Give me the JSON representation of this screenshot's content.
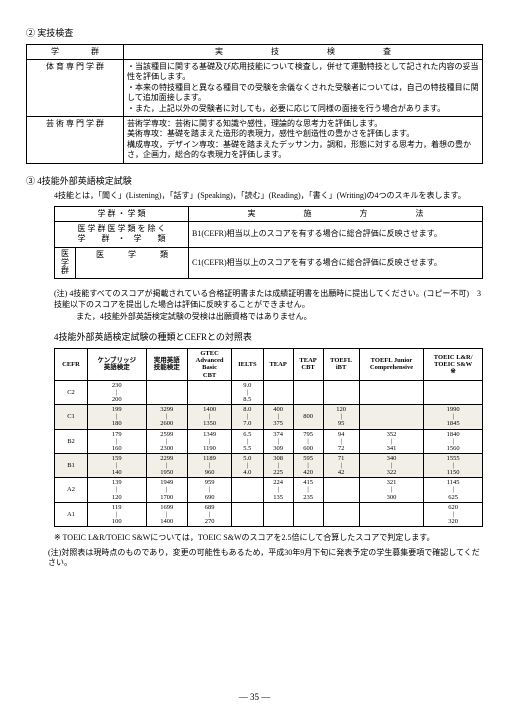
{
  "section2": {
    "title": "② 実技検査",
    "table": {
      "headers": [
        "学　　　　群",
        "実　　　　　　技　　　　　　検　　　　　　査"
      ],
      "rows": [
        {
          "label": "体 育 専 門 学 群",
          "content": "・当該種目に関する基礎及び応用技能について検査し，併せて運動特技として記された内容の妥当性を評価します。\n・本来の特技種目と異なる種目での受験を余儀なくされた受験者については，自己の特技種目に関して追加面接します。\n・また，上記以外の受験者に対しても，必要に応じて同様の面接を行う場合があります。"
        },
        {
          "label": "芸 術 専 門 学 群",
          "content": "芸術学専攻：芸術に関する知識や感性，理論的な思考力を評価します。\n美術専攻：基礎を踏まえた造形的表現力，感性や創造性の豊かさを評価します。\n構成専攻，デザイン専攻：基礎を踏まえたデッサン力，調和，形態に対する思考力，着想の豊かさ，企画力，総合的な表現力を評価します。"
        }
      ]
    }
  },
  "section3": {
    "title": "③ 4技能外部英語検定試験",
    "sub": "4技能とは，「聞く」(Listening)，「話す」(Speaking)，「読む」(Reading)，「書く」(Writing)の4つのスキルを表します。",
    "table": {
      "headers": [
        "学 群 ・ 学 類",
        "実　　　　　　施　　　　　　方　　　　　　法"
      ],
      "rows": [
        {
          "label1": [
            "医 学 群 医 学 類 を 除 く",
            "学　　群　・　学　　類"
          ],
          "content": "B1(CEFR)相当以上のスコアを有する場合に総合評価に反映させます。"
        },
        {
          "label_group": "医学群",
          "label2_col": "医　　　学　　　類",
          "content": "C1(CEFR)相当以上のスコアを有する場合に総合評価に反映させます。"
        }
      ]
    },
    "notes": [
      "(注) 4技能すべてのスコアが掲載されている合格証明書または成績証明書を出願時に提出してください。(コピー不可)　3技能以下のスコアを提出した場合は評価に反映することができません。",
      "また，4技能外部英語検定試験の受検は出願資格ではありません。"
    ],
    "matrix_caption": "4技能外部英語検定試験の種類とCEFRとの対照表",
    "matrix": {
      "headers": [
        "CEFR",
        "ケンブリッジ\n英語検定",
        "実用英語\n技能検定",
        "GTEC\nAdvanced\nBasic\nCBT",
        "IELTS",
        "TEAP",
        "TEAP\nCBT",
        "TOEFL\niBT",
        "TOEFL Junior\nComprehensive",
        "TOEIC L&R/\nTOEIC S&W\n※"
      ],
      "rows": [
        {
          "shade": false,
          "cefr": "C2",
          "cells": [
            "230\n|\n200",
            "",
            "",
            "9.0\n|\n8.5",
            "",
            "",
            "",
            "",
            ""
          ]
        },
        {
          "shade": true,
          "cefr": "C1",
          "cells": [
            "199\n|\n180",
            "3299\n|\n2600",
            "1400\n|\n1350",
            "8.0\n|\n7.0",
            "400\n|\n375",
            "800",
            "120\n|\n95",
            "",
            "1990\n|\n1845"
          ]
        },
        {
          "shade": false,
          "cefr": "B2",
          "cells": [
            "179\n|\n160",
            "2599\n|\n2300",
            "1349\n|\n1190",
            "6.5\n|\n5.5",
            "374\n|\n309",
            "795\n|\n600",
            "94\n|\n72",
            "352\n|\n341",
            "1840\n|\n1560"
          ]
        },
        {
          "shade": true,
          "cefr": "B1",
          "cells": [
            "159\n|\n140",
            "2299\n|\n1950",
            "1189\n|\n960",
            "5.0\n|\n4.0",
            "308\n|\n225",
            "595\n|\n420",
            "71\n|\n42",
            "340\n|\n322",
            "1555\n|\n1150"
          ]
        },
        {
          "shade": false,
          "cefr": "A2",
          "cells": [
            "139\n|\n120",
            "1949\n|\n1700",
            "959\n|\n690",
            "",
            "224\n|\n135",
            "415\n|\n235",
            "",
            "321\n|\n300",
            "1145\n|\n625"
          ]
        },
        {
          "shade": false,
          "cefr": "A1",
          "cells": [
            "119\n|\n100",
            "1699\n|\n1400",
            "689\n|\n270",
            "",
            "",
            "",
            "",
            "",
            "620\n|\n320"
          ]
        }
      ]
    },
    "footnotes": [
      "※ TOEIC L&R/TOEIC S&Wについては，TOEIC S&Wのスコアを2.5倍にして合算したスコアで判定します。",
      "(注)対照表は現時点のものであり，変更の可能性もあるため，平成30年9月下旬に発表予定の学生募集要項で確認してください。"
    ]
  },
  "page_number": "— 35 —"
}
